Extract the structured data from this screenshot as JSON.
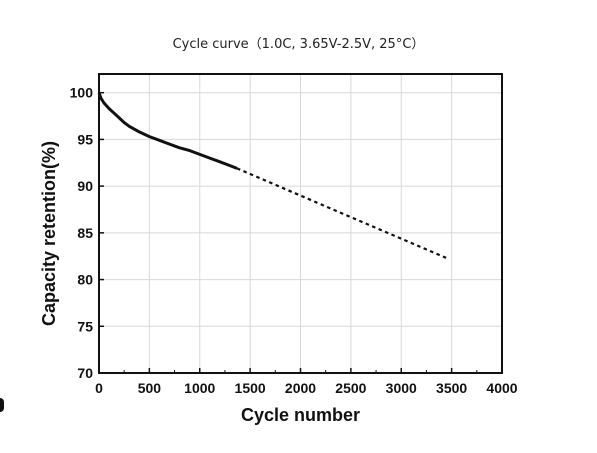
{
  "chart_data": {
    "type": "line",
    "title": "Cycle curve（1.0C, 3.65V-2.5V, 25°C）",
    "xlabel": "Cycle number",
    "ylabel": "Capacity retention(%)",
    "xlim": [
      0,
      4000
    ],
    "ylim": [
      70,
      102
    ],
    "xticks": [
      0,
      500,
      1000,
      1500,
      2000,
      2500,
      3000,
      3500,
      4000
    ],
    "yticks": [
      70,
      75,
      80,
      85,
      90,
      95,
      100
    ],
    "grid": true,
    "series": [
      {
        "style": "solid",
        "x": [
          0,
          20,
          50,
          100,
          150,
          200,
          250,
          300,
          400,
          500,
          600,
          700,
          800,
          900,
          1000,
          1100,
          1200,
          1300,
          1370
        ],
        "y": [
          100.0,
          99.4,
          98.9,
          98.3,
          97.8,
          97.3,
          96.8,
          96.4,
          95.8,
          95.3,
          94.9,
          94.5,
          94.1,
          93.8,
          93.4,
          93.0,
          92.6,
          92.2,
          91.9
        ]
      },
      {
        "style": "dotted",
        "x": [
          1370,
          3450
        ],
        "y": [
          91.9,
          82.3
        ]
      }
    ]
  }
}
